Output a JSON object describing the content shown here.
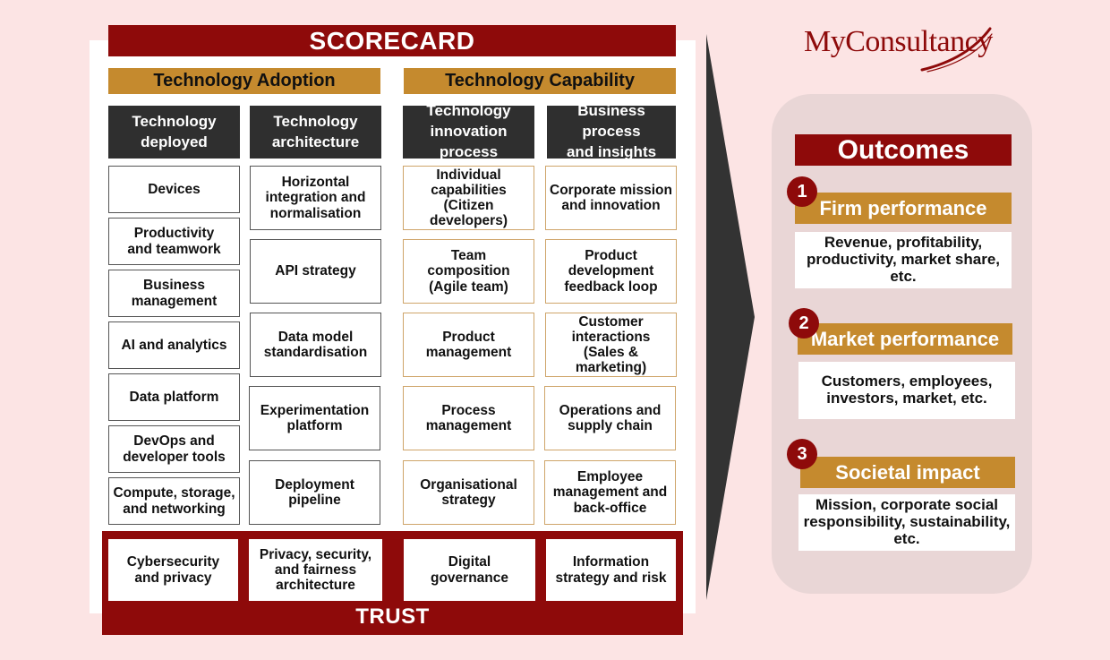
{
  "scorecard": {
    "title": "SCORECARD",
    "sections": {
      "adoption": "Technology Adoption",
      "capability": "Technology Capability"
    },
    "columns": [
      {
        "header": "Technology\ndeployed",
        "items": [
          "Devices",
          "Productivity\nand teamwork",
          "Business\nmanagement",
          "AI and analytics",
          "Data platform",
          "DevOps and\ndeveloper tools",
          "Compute, storage,\nand networking"
        ],
        "trust_item": "Cybersecurity\nand privacy"
      },
      {
        "header": "Technology\narchitecture",
        "items": [
          "Horizontal\nintegration and\nnormalisation",
          "API strategy",
          "Data model\nstandardisation",
          "Experimentation\nplatform",
          "Deployment\npipeline"
        ],
        "trust_item": "Privacy, security,\nand fairness\narchitecture"
      },
      {
        "header": "Technology\ninnovation process",
        "items": [
          "Individual\ncapabilities\n(Citizen developers)",
          "Team\ncomposition\n(Agile team)",
          "Product\nmanagement",
          "Process\nmanagement",
          "Organisational\nstrategy"
        ],
        "trust_item": "Digital\ngovernance"
      },
      {
        "header": "Business process\nand insights",
        "items": [
          "Corporate mission\nand innovation",
          "Product\ndevelopment\nfeedback loop",
          "Customer\ninteractions\n(Sales & marketing)",
          "Operations and\nsupply chain",
          "Employee\nmanagement and\nback-office"
        ],
        "trust_item": "Information\nstrategy and risk"
      }
    ],
    "trust_label": "TRUST"
  },
  "logo": {
    "text": "MyConsultancy"
  },
  "outcomes": {
    "title": "Outcomes",
    "items": [
      {
        "number": "1",
        "title": "Firm performance",
        "description": "Revenue, profitability,\nproductivity, market share,\netc."
      },
      {
        "number": "2",
        "title": "Market performance",
        "description": "Customers, employees,\ninvestors, market, etc."
      },
      {
        "number": "3",
        "title": "Societal impact",
        "description": "Mission, corporate social\nresponsibility, sustainability,\netc."
      }
    ]
  },
  "colors": {
    "brand_red": "#8e0a0a",
    "gold": "#c58a2e",
    "dark_header": "#2f2f2f",
    "background": "#fce4e4"
  }
}
